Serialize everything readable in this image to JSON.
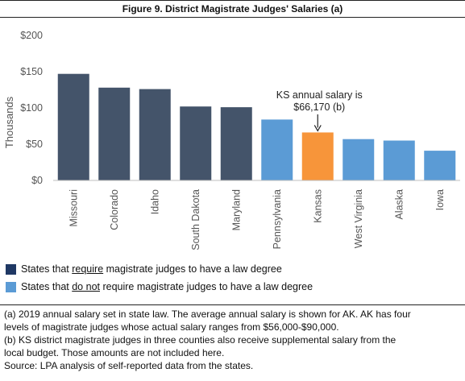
{
  "title": "Figure 9. District Magistrate Judges' Salaries (a)",
  "colors": {
    "require": "#44546a",
    "do_not_require": "#5b9bd5",
    "kansas": "#f7953a",
    "axis_text": "#555555",
    "baseline": "#bfbfbf"
  },
  "chart_data": {
    "type": "bar",
    "categories": [
      "Missouri",
      "Colorado",
      "Idaho",
      "South Dakota",
      "Maryland",
      "Pennsylvania",
      "Kansas",
      "West Virginia",
      "Alaska",
      "Iowa"
    ],
    "values": [
      147,
      128,
      126,
      102,
      101,
      84,
      66.17,
      57,
      55,
      41
    ],
    "groups": [
      "require",
      "require",
      "require",
      "require",
      "require",
      "do_not_require",
      "do_not_require",
      "do_not_require",
      "do_not_require",
      "do_not_require"
    ],
    "highlight": "Kansas",
    "ylabel": "Thousands",
    "ylim": [
      0,
      200
    ],
    "yticks": [
      0,
      50,
      100,
      150,
      200
    ],
    "ytick_labels": [
      "$0",
      "$50",
      "$100",
      "$150",
      "$200"
    ],
    "grid": false,
    "annotation": {
      "target": "Kansas",
      "lines": [
        "KS annual salary is",
        "$66,170 (b)"
      ]
    }
  },
  "legend": {
    "require": {
      "before": "States that ",
      "underlined": "require",
      "after": " magistrate judges to have a law degree"
    },
    "do_not_require": {
      "before": "States that ",
      "underlined": "do not",
      "after": " require magistrate judges to have a law degree"
    }
  },
  "notes": [
    "(a) 2019 annual salary set in state law. The average annual salary is shown for AK. AK has four",
    "levels of magistrate judges whose actual salary ranges from $56,000-$90,000.",
    "(b) KS district magistrate judges in three counties also receive supplemental salary from the",
    "local budget. Those amounts are not included here.",
    "Source: LPA analysis of self-reported data from the states."
  ]
}
